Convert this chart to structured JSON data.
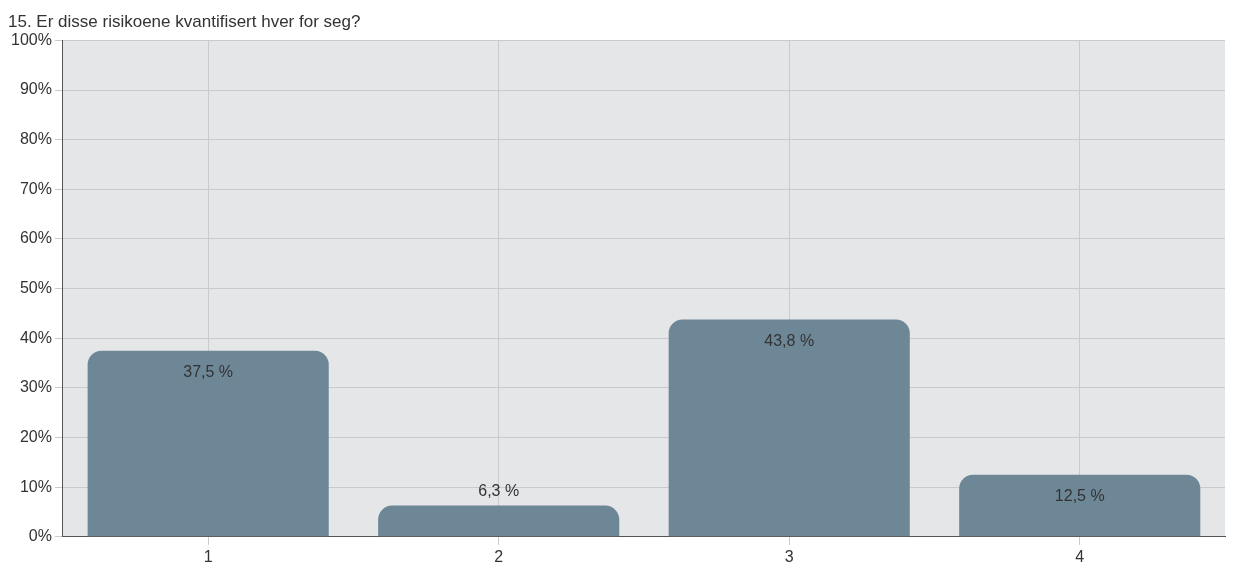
{
  "chart_data": {
    "type": "bar",
    "title": "15. Er disse risikoene kvantifisert hver for seg?",
    "categories": [
      "1",
      "2",
      "3",
      "4"
    ],
    "values": [
      37.5,
      6.3,
      43.8,
      12.5
    ],
    "value_labels": [
      "37,5 %",
      "6,3 %",
      "43,8 %",
      "12,5 %"
    ],
    "color": "#6e8797",
    "ylim": [
      0,
      100
    ],
    "yticks": [
      {
        "value": 0,
        "label": "0%"
      },
      {
        "value": 10,
        "label": "10%"
      },
      {
        "value": 20,
        "label": "20%"
      },
      {
        "value": 30,
        "label": "30%"
      },
      {
        "value": 40,
        "label": "40%"
      },
      {
        "value": 50,
        "label": "50%"
      },
      {
        "value": 60,
        "label": "60%"
      },
      {
        "value": 70,
        "label": "70%"
      },
      {
        "value": 80,
        "label": "80%"
      },
      {
        "value": 90,
        "label": "90%"
      },
      {
        "value": 100,
        "label": "100%"
      }
    ],
    "grid": true
  }
}
